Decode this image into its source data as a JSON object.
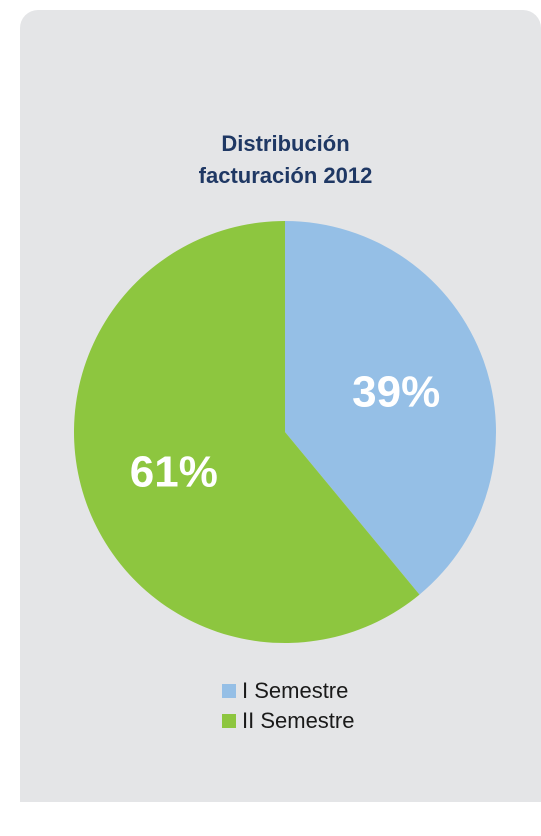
{
  "chart_data": {
    "type": "pie",
    "title_lines": [
      "Distribución",
      "facturación 2012"
    ],
    "slices": [
      {
        "name": "I Semestre",
        "value": 39,
        "label": "39%",
        "color": "#95bfe6"
      },
      {
        "name": "II Semestre",
        "value": 61,
        "label": "61%",
        "color": "#8dc63f"
      }
    ],
    "legend_placement": "bottom"
  }
}
